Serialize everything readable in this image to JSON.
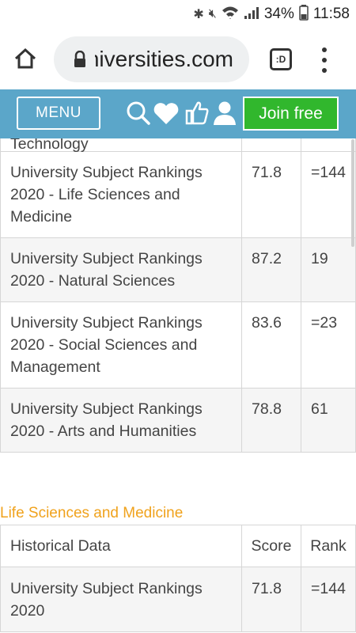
{
  "status_bar": {
    "battery": "34%",
    "time": "11:58"
  },
  "browser": {
    "url_visible": "universities.com",
    "tab_icon_label": ":D"
  },
  "nav": {
    "menu_label": "MENU",
    "join_label": "Join free",
    "icons": [
      "search-icon",
      "heart-icon",
      "thumbs-up-icon",
      "user-icon"
    ],
    "colors": {
      "bar": "#5ba6c9",
      "join": "#31b72d",
      "heading": "#f0a21c"
    }
  },
  "rankings_table": {
    "partial_top_label": "Technology",
    "rows": [
      {
        "subject": "University Subject Rankings 2020 - Life Sciences and Medicine",
        "score": "71.8",
        "rank": "=144"
      },
      {
        "subject": "University Subject Rankings 2020 - Natural Sciences",
        "score": "87.2",
        "rank": "19"
      },
      {
        "subject": "University Subject Rankings 2020 - Social Sciences and Management",
        "score": "83.6",
        "rank": "=23"
      },
      {
        "subject": "University Subject Rankings 2020 - Arts and Humanities",
        "score": "78.8",
        "rank": "61"
      }
    ]
  },
  "life_sciences": {
    "heading": "Life Sciences and Medicine",
    "columns": [
      "Historical Data",
      "Score",
      "Rank"
    ],
    "rows": [
      {
        "subject": "University Subject Rankings 2020",
        "score": "71.8",
        "rank": "=144"
      }
    ]
  }
}
